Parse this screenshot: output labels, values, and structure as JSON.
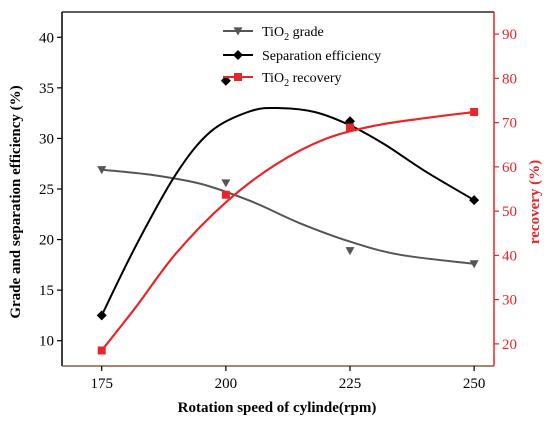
{
  "chart_data": {
    "type": "line",
    "x": [
      175,
      200,
      225,
      250
    ],
    "xlabel": "Rotation speed of cylinde(rpm)",
    "x_ticks": [
      175,
      200,
      225,
      250
    ],
    "xlim": [
      167,
      254
    ],
    "left_axis": {
      "label": "Grade and separation efficiency (%)",
      "ylim": [
        7.5,
        42.5
      ],
      "ticks": [
        10,
        15,
        20,
        25,
        30,
        35,
        40
      ],
      "color": "#000000"
    },
    "right_axis": {
      "label": "recovery (%)",
      "ylim": [
        15,
        95
      ],
      "ticks": [
        20,
        30,
        40,
        50,
        60,
        70,
        80,
        90
      ],
      "color": "#e8262a"
    },
    "series": [
      {
        "name": "TiO2 grade",
        "axis": "left",
        "marker": "triangle-down",
        "color": "#555555",
        "values": [
          26.9,
          25.6,
          18.9,
          17.6
        ],
        "fit": [
          [
            175,
            26.9
          ],
          [
            185,
            26.4
          ],
          [
            195,
            25.5
          ],
          [
            205,
            23.8
          ],
          [
            215,
            21.6
          ],
          [
            225,
            19.8
          ],
          [
            235,
            18.5
          ],
          [
            250,
            17.6
          ]
        ]
      },
      {
        "name": "Separation efficiency",
        "axis": "left",
        "marker": "diamond",
        "color": "#000000",
        "values": [
          12.5,
          35.7,
          31.7,
          23.9
        ],
        "fit": [
          [
            175,
            12.5
          ],
          [
            182,
            19.5
          ],
          [
            190,
            26.5
          ],
          [
            197,
            30.7
          ],
          [
            205,
            32.7
          ],
          [
            211,
            33.0
          ],
          [
            218,
            32.6
          ],
          [
            225,
            31.3
          ],
          [
            232,
            29.4
          ],
          [
            240,
            26.8
          ],
          [
            250,
            23.9
          ]
        ]
      },
      {
        "name": "TiO2 recovery",
        "axis": "right",
        "marker": "square",
        "color": "#e8262a",
        "values": [
          18.5,
          53.7,
          68.9,
          72.4
        ],
        "fit": [
          [
            175,
            18.5
          ],
          [
            182,
            28.5
          ],
          [
            190,
            40.5
          ],
          [
            200,
            52.0
          ],
          [
            210,
            60.5
          ],
          [
            220,
            66.3
          ],
          [
            230,
            69.3
          ],
          [
            240,
            71.0
          ],
          [
            250,
            72.4
          ]
        ]
      }
    ],
    "legend": {
      "placement": "top-center",
      "entries": [
        {
          "pre": "TiO",
          "sub": "2",
          "post": " grade"
        },
        {
          "pre": "Separation efficiency",
          "sub": "",
          "post": ""
        },
        {
          "pre": "TiO",
          "sub": "2",
          "post": " recovery"
        }
      ]
    },
    "grid": false
  }
}
